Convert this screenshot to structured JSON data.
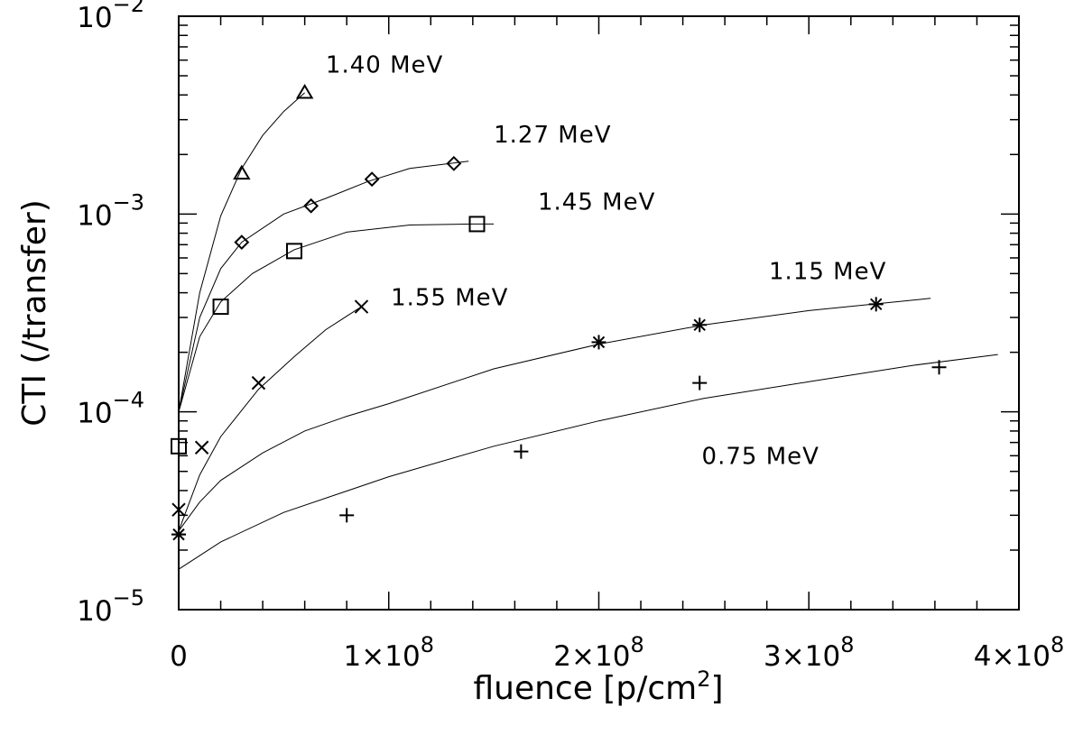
{
  "chart_data": {
    "type": "scatter",
    "title": "",
    "xlabel": "fluence [p/cm2]",
    "ylabel": "CTI (/transfer)",
    "xscale": "linear",
    "yscale": "log",
    "xlim": [
      0,
      400000000
    ],
    "ylim": [
      1e-05,
      0.01
    ],
    "x_tick_labels": [
      {
        "value": 0,
        "mantissa": "0",
        "exponent": ""
      },
      {
        "value": 100000000,
        "mantissa": "1×10",
        "exponent": "8"
      },
      {
        "value": 200000000,
        "mantissa": "2×10",
        "exponent": "8"
      },
      {
        "value": 300000000,
        "mantissa": "3×10",
        "exponent": "8"
      },
      {
        "value": 400000000,
        "mantissa": "4×10",
        "exponent": "8"
      }
    ],
    "y_tick_labels": [
      {
        "value": 1e-05,
        "base": "10",
        "exponent": "−5"
      },
      {
        "value": 0.0001,
        "base": "10",
        "exponent": "−4"
      },
      {
        "value": 0.001,
        "base": "10",
        "exponent": "−3"
      },
      {
        "value": 0.01,
        "base": "10",
        "exponent": "−2"
      }
    ],
    "grid": false,
    "legend": "none",
    "series": [
      {
        "name": "1.40 MeV",
        "marker": "triangle",
        "points": [
          [
            30000000,
            0.0016
          ],
          [
            60000000,
            0.0041
          ]
        ],
        "fit": [
          [
            0,
            0.0001
          ],
          [
            10000000,
            0.0004
          ],
          [
            20000000,
            0.00098
          ],
          [
            30000000,
            0.0017
          ],
          [
            40000000,
            0.0025
          ],
          [
            50000000,
            0.0033
          ],
          [
            60000000,
            0.0041
          ]
        ]
      },
      {
        "name": "1.27 MeV",
        "marker": "diamond",
        "points": [
          [
            30000000,
            0.00072
          ],
          [
            63000000,
            0.0011
          ],
          [
            92000000,
            0.0015
          ],
          [
            131000000,
            0.0018
          ]
        ],
        "fit": [
          [
            0,
            0.0001
          ],
          [
            10000000,
            0.0003
          ],
          [
            20000000,
            0.00053
          ],
          [
            30000000,
            0.00072
          ],
          [
            50000000,
            0.001
          ],
          [
            70000000,
            0.0012
          ],
          [
            90000000,
            0.00146
          ],
          [
            110000000,
            0.0017
          ],
          [
            138000000,
            0.00185
          ]
        ]
      },
      {
        "name": "1.45 MeV",
        "marker": "square",
        "points": [
          [
            0,
            6.7e-05
          ],
          [
            20000000,
            0.00034
          ],
          [
            55000000,
            0.00065
          ],
          [
            142000000,
            0.00089
          ]
        ],
        "fit": [
          [
            0,
            0.0001
          ],
          [
            10000000,
            0.00024
          ],
          [
            20000000,
            0.00036
          ],
          [
            35000000,
            0.0005
          ],
          [
            55000000,
            0.00066
          ],
          [
            80000000,
            0.00081
          ],
          [
            110000000,
            0.00088
          ],
          [
            140000000,
            0.00089
          ],
          [
            150000000,
            0.00089
          ]
        ]
      },
      {
        "name": "1.55 MeV",
        "marker": "x",
        "points": [
          [
            0,
            3.2e-05
          ],
          [
            11000000,
            6.6e-05
          ],
          [
            38000000,
            0.00014
          ],
          [
            87000000,
            0.00034
          ]
        ],
        "fit": [
          [
            0,
            2.5e-05
          ],
          [
            10000000,
            4.8e-05
          ],
          [
            20000000,
            7.5e-05
          ],
          [
            38000000,
            0.00013
          ],
          [
            55000000,
            0.00019
          ],
          [
            70000000,
            0.00026
          ],
          [
            87000000,
            0.00034
          ]
        ]
      },
      {
        "name": "1.15 MeV",
        "marker": "asterisk",
        "points": [
          [
            0,
            2.4e-05
          ],
          [
            200000000,
            0.000225
          ],
          [
            248000000,
            0.000275
          ],
          [
            332000000,
            0.00035
          ]
        ],
        "fit": [
          [
            0,
            2.5e-05
          ],
          [
            10000000,
            3.5e-05
          ],
          [
            20000000,
            4.5e-05
          ],
          [
            40000000,
            6.2e-05
          ],
          [
            60000000,
            8e-05
          ],
          [
            80000000,
            9.5e-05
          ],
          [
            100000000,
            0.00011
          ],
          [
            150000000,
            0.000165
          ],
          [
            200000000,
            0.00022
          ],
          [
            250000000,
            0.000275
          ],
          [
            300000000,
            0.000325
          ],
          [
            358000000,
            0.000375
          ]
        ]
      },
      {
        "name": "0.75 MeV",
        "marker": "plus",
        "points": [
          [
            0,
            2.4e-05
          ],
          [
            80000000,
            3e-05
          ],
          [
            163000000,
            6.3e-05
          ],
          [
            248000000,
            0.00014
          ],
          [
            362000000,
            0.000168
          ]
        ],
        "fit": [
          [
            0,
            1.6e-05
          ],
          [
            20000000,
            2.2e-05
          ],
          [
            50000000,
            3.1e-05
          ],
          [
            100000000,
            4.7e-05
          ],
          [
            150000000,
            6.7e-05
          ],
          [
            200000000,
            9e-05
          ],
          [
            250000000,
            0.000117
          ],
          [
            300000000,
            0.000142
          ],
          [
            350000000,
            0.000172
          ],
          [
            390000000,
            0.000195
          ]
        ]
      }
    ],
    "annotations": [
      {
        "text": "1.40 MeV",
        "x": 70000000,
        "y": 0.0052
      },
      {
        "text": "1.27 MeV",
        "x": 150000000,
        "y": 0.0023
      },
      {
        "text": "1.45 MeV",
        "x": 171000000,
        "y": 0.00105
      },
      {
        "text": "1.15 MeV",
        "x": 281000000,
        "y": 0.00047
      },
      {
        "text": "1.55 MeV",
        "x": 101000000,
        "y": 0.000345
      },
      {
        "text": "0.75 MeV",
        "x": 249000000,
        "y": 5.45e-05
      }
    ]
  }
}
